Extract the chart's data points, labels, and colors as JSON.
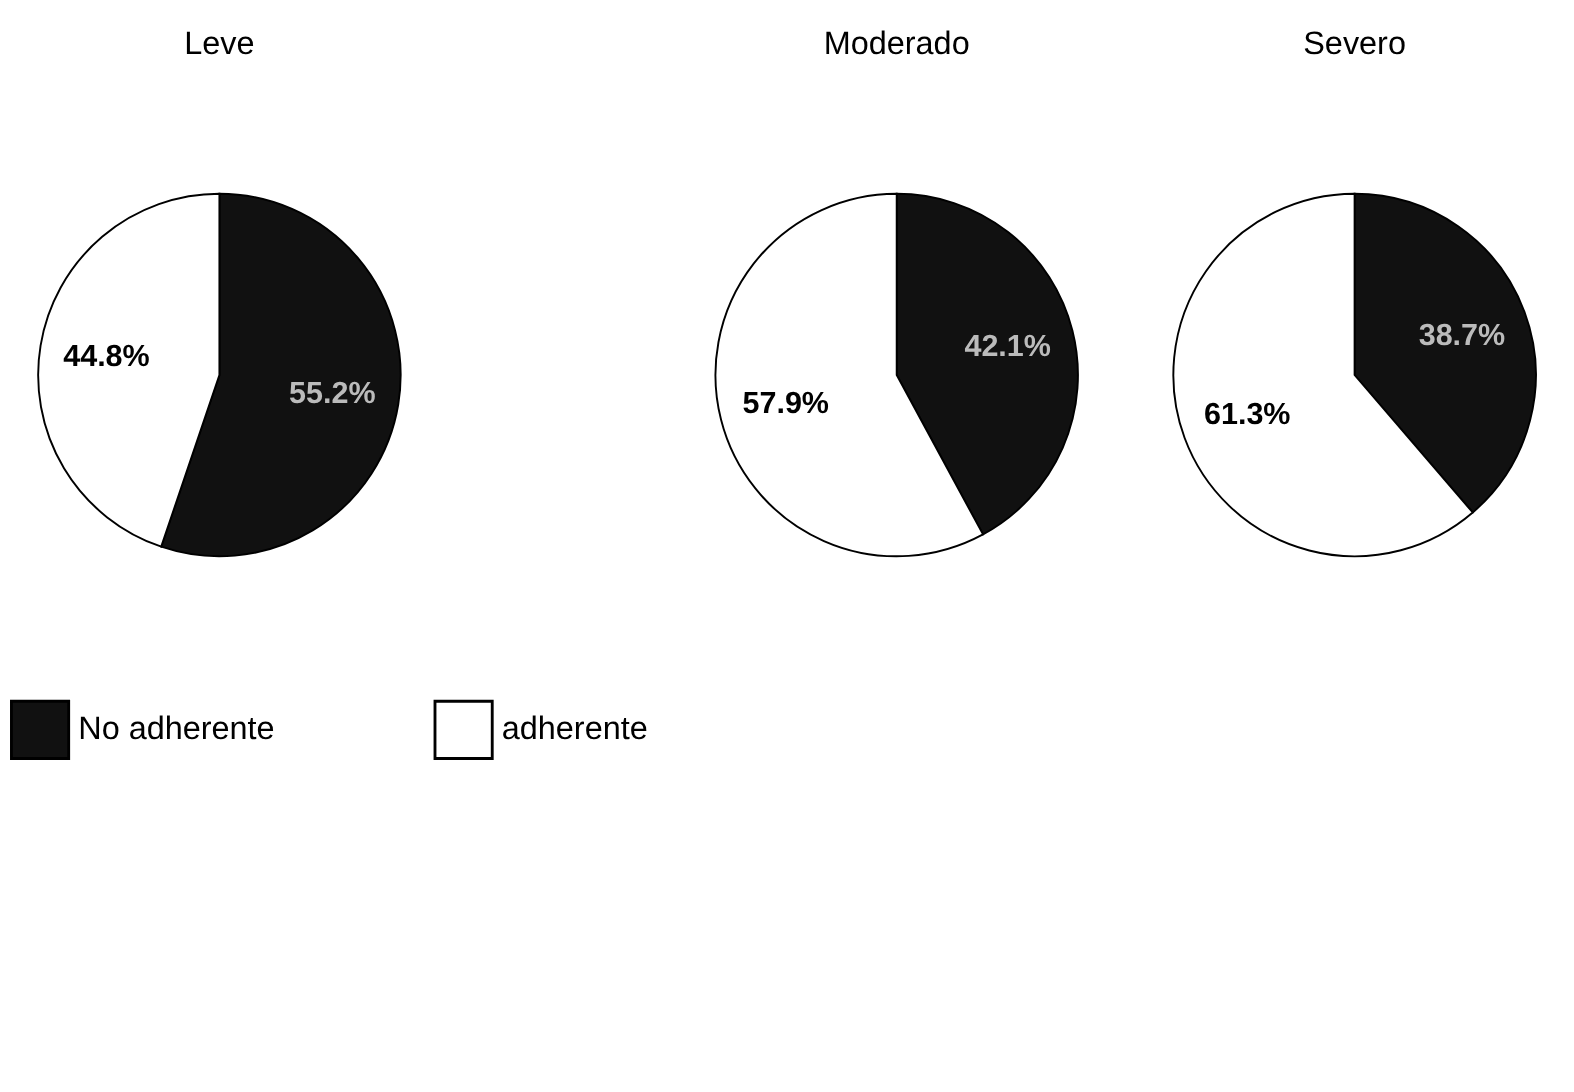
{
  "chart_data": [
    {
      "type": "pie",
      "title": "Leve",
      "categories": [
        "No adherente",
        "adherente"
      ],
      "values": [
        55.2,
        44.8
      ],
      "colors": [
        "#111111",
        "#ffffff"
      ],
      "value_labels": [
        "55.2%",
        "44.8%"
      ],
      "legend": "bottom"
    },
    {
      "type": "pie",
      "title": "Moderado",
      "categories": [
        null,
        null
      ],
      "values": [
        42.1,
        57.9
      ],
      "colors": [
        "#111111",
        "#ffffff"
      ],
      "value_labels": [
        "42.1%",
        "57.9%"
      ]
    },
    {
      "type": "pie",
      "title": "Severo",
      "categories": [
        null,
        null
      ],
      "values": [
        38.7,
        61.3
      ],
      "colors": [
        "#111111",
        "#ffffff"
      ],
      "value_labels": [
        "38.7%",
        "61.3%"
      ]
    }
  ]
}
